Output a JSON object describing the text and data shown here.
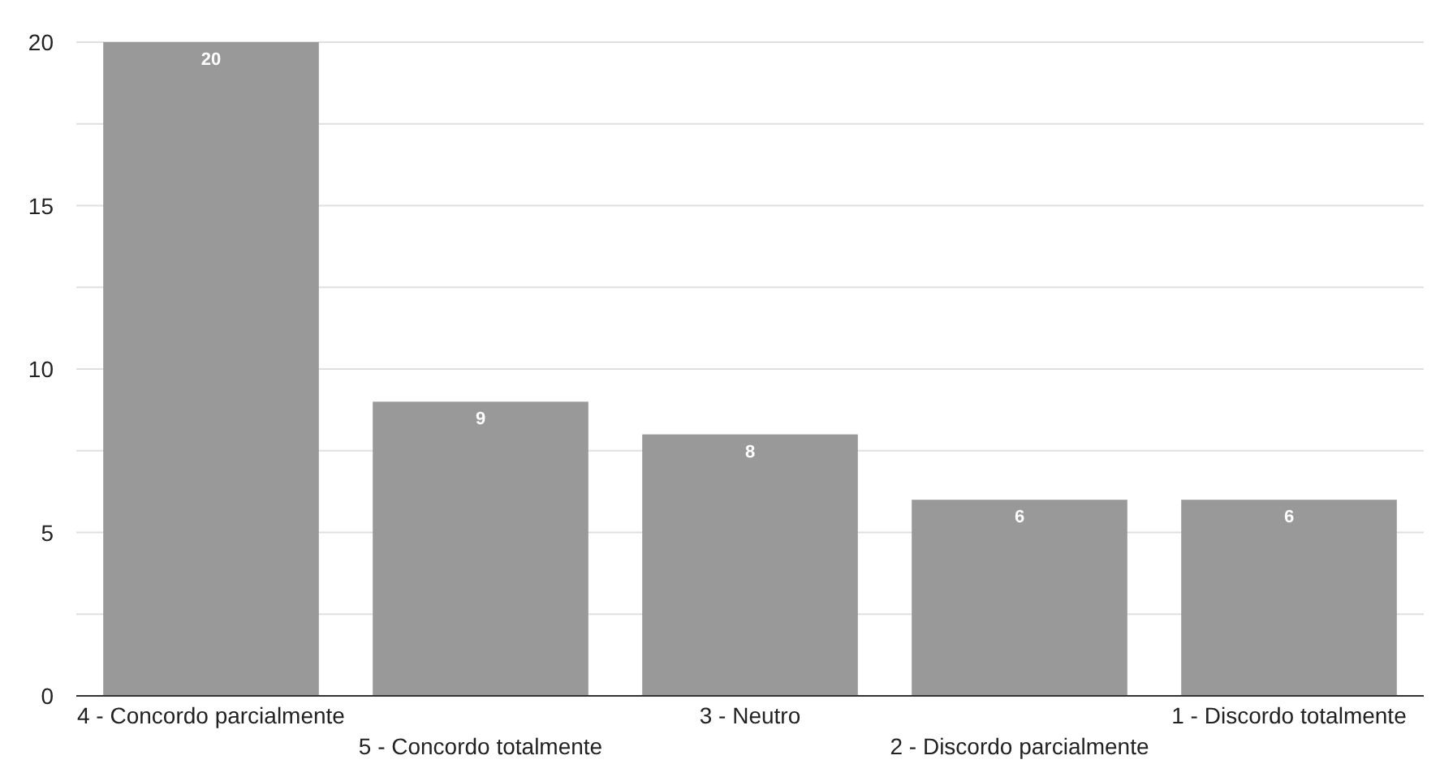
{
  "chart_data": {
    "type": "bar",
    "categories": [
      "4 - Concordo parcialmente",
      "5 - Concordo totalmente",
      "3 - Neutro",
      "2 - Discordo parcialmente",
      "1 - Discordo totalmente"
    ],
    "values": [
      20,
      9,
      8,
      6,
      6
    ],
    "color": "#999999",
    "ylim": [
      0,
      20
    ],
    "yticks": [
      0,
      {
        "value": 2.5,
        "label": null
      },
      5,
      {
        "value": 7.5,
        "label": null
      },
      10,
      {
        "value": 12.5,
        "label": null
      },
      15,
      {
        "value": 17.5,
        "label": null
      },
      20
    ],
    "grid": "y",
    "data_labels": true
  }
}
